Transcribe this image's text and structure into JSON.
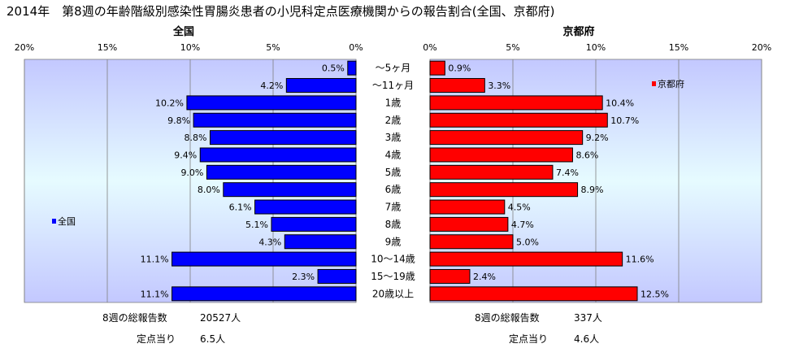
{
  "title": "2014年　第8週の年齢階級別感染性胃腸炎患者の小児科定点医療機関からの報告割合(全国、京都府)",
  "chart_data": [
    {
      "type": "bar",
      "orientation": "horizontal",
      "direction": "right-to-left",
      "title": "全国",
      "xlim": [
        0,
        20
      ],
      "ticks": [
        "20%",
        "15%",
        "10%",
        "5%",
        "0%"
      ],
      "tick_values": [
        20,
        15,
        10,
        5,
        0
      ],
      "categories": [
        "～5ヶ月",
        "～11ヶ月",
        "1歳",
        "2歳",
        "3歳",
        "4歳",
        "5歳",
        "6歳",
        "7歳",
        "8歳",
        "9歳",
        "10～14歳",
        "15～19歳",
        "20歳以上"
      ],
      "series": [
        {
          "name": "全国",
          "color": "#0000ff",
          "values": [
            0.5,
            4.2,
            10.2,
            9.8,
            8.8,
            9.4,
            9.0,
            8.0,
            6.1,
            5.1,
            4.3,
            11.1,
            2.3,
            11.1
          ],
          "labels": [
            "0.5%",
            "4.2%",
            "10.2%",
            "9.8%",
            "8.8%",
            "9.4%",
            "9.0%",
            "8.0%",
            "6.1%",
            "5.1%",
            "4.3%",
            "11.1%",
            "2.3%",
            "11.1%"
          ]
        }
      ],
      "legend": "left-middle",
      "grid": true
    },
    {
      "type": "bar",
      "orientation": "horizontal",
      "direction": "left-to-right",
      "title": "京都府",
      "xlim": [
        0,
        20
      ],
      "ticks": [
        "0%",
        "5%",
        "10%",
        "15%",
        "20%"
      ],
      "tick_values": [
        0,
        5,
        10,
        15,
        20
      ],
      "categories": [
        "～5ヶ月",
        "～11ヶ月",
        "1歳",
        "2歳",
        "3歳",
        "4歳",
        "5歳",
        "6歳",
        "7歳",
        "8歳",
        "9歳",
        "10～14歳",
        "15～19歳",
        "20歳以上"
      ],
      "series": [
        {
          "name": "京都府",
          "color": "#ff0000",
          "values": [
            0.9,
            3.3,
            10.4,
            10.7,
            9.2,
            8.6,
            7.4,
            8.9,
            4.5,
            4.7,
            5.0,
            11.6,
            2.4,
            12.5
          ],
          "labels": [
            "0.9%",
            "3.3%",
            "10.4%",
            "10.7%",
            "9.2%",
            "8.6%",
            "7.4%",
            "8.9%",
            "4.5%",
            "4.7%",
            "5.0%",
            "11.6%",
            "2.4%",
            "12.5%"
          ]
        }
      ],
      "legend": "right-top",
      "grid": true
    }
  ],
  "footer": {
    "national": {
      "total_label": "8週の総報告数",
      "total_value": "20527人",
      "per_label": "定点当り",
      "per_value": "6.5人"
    },
    "kyoto": {
      "total_label": "8週の総報告数",
      "total_value": "337人",
      "per_label": "定点当り",
      "per_value": "4.6人"
    }
  }
}
